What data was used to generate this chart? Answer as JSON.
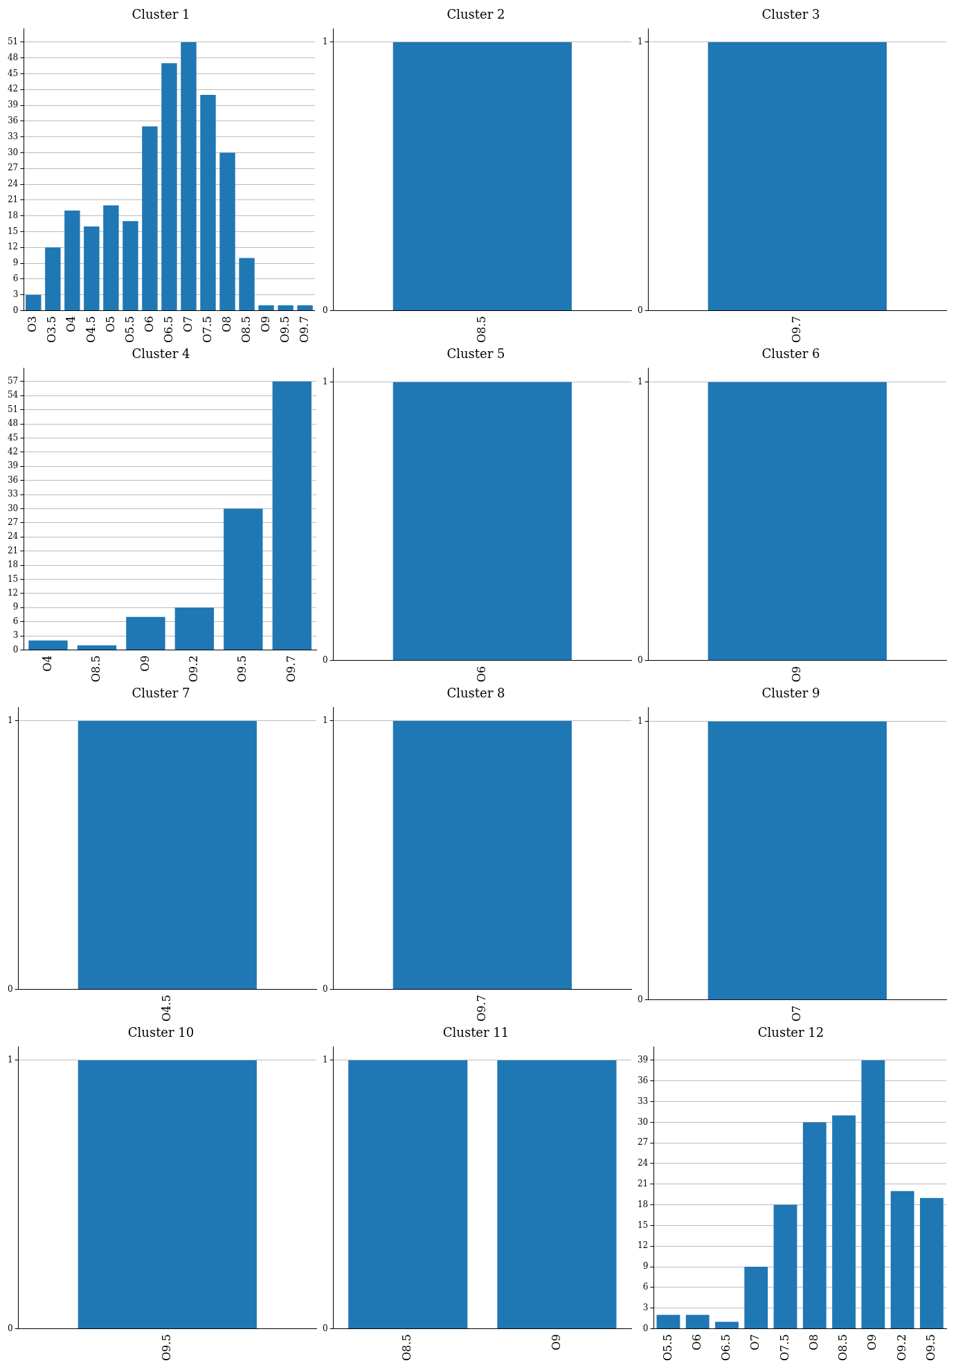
{
  "chart_data": [
    {
      "type": "bar",
      "title": "Cluster 1",
      "categories": [
        "O3",
        "O3.5",
        "O4",
        "O4.5",
        "O5",
        "O5.5",
        "O6",
        "O6.5",
        "O7",
        "O7.5",
        "O8",
        "O8.5",
        "O9",
        "O9.5",
        "O9.7"
      ],
      "values": [
        3,
        12,
        19,
        16,
        20,
        17,
        35,
        47,
        51,
        41,
        30,
        10,
        1,
        1,
        1
      ],
      "color": "#1f77b4",
      "ylim": [
        0,
        53.55
      ],
      "yticks": [
        0,
        3,
        6,
        9,
        12,
        15,
        18,
        21,
        24,
        27,
        30,
        33,
        36,
        39,
        42,
        45,
        48,
        51
      ],
      "grid": "y"
    },
    {
      "type": "bar",
      "title": "Cluster 2",
      "categories": [
        "O8.5"
      ],
      "values": [
        1
      ],
      "color": "#1f77b4",
      "ylim": [
        0,
        1.05
      ],
      "yticks": [
        0,
        1
      ],
      "grid": "y"
    },
    {
      "type": "bar",
      "title": "Cluster 3",
      "categories": [
        "O9.7"
      ],
      "values": [
        1
      ],
      "color": "#1f77b4",
      "ylim": [
        0,
        1.05
      ],
      "yticks": [
        0,
        1
      ],
      "grid": "y"
    },
    {
      "type": "bar",
      "title": "Cluster 4",
      "categories": [
        "O4",
        "O8.5",
        "O9",
        "O9.2",
        "O9.5",
        "O9.7"
      ],
      "values": [
        2,
        1,
        7,
        9,
        30,
        57
      ],
      "color": "#1f77b4",
      "ylim": [
        0,
        59.85
      ],
      "yticks": [
        0,
        3,
        6,
        9,
        12,
        15,
        18,
        21,
        24,
        27,
        30,
        33,
        36,
        39,
        42,
        45,
        48,
        51,
        54,
        57
      ],
      "grid": "y"
    },
    {
      "type": "bar",
      "title": "Cluster 5",
      "categories": [
        "O6"
      ],
      "values": [
        1
      ],
      "color": "#1f77b4",
      "ylim": [
        0,
        1.05
      ],
      "yticks": [
        0,
        1
      ],
      "grid": "y"
    },
    {
      "type": "bar",
      "title": "Cluster 6",
      "categories": [
        "O9"
      ],
      "values": [
        1
      ],
      "color": "#1f77b4",
      "ylim": [
        0,
        1.05
      ],
      "yticks": [
        0,
        1
      ],
      "grid": "y"
    },
    {
      "type": "bar",
      "title": "Cluster 7",
      "categories": [
        "O4.5"
      ],
      "values": [
        1
      ],
      "color": "#1f77b4",
      "ylim": [
        0,
        1.05
      ],
      "yticks": [
        0,
        1
      ],
      "grid": "y"
    },
    {
      "type": "bar",
      "title": "Cluster 8",
      "categories": [
        "O9.7"
      ],
      "values": [
        1
      ],
      "color": "#1f77b4",
      "ylim": [
        0,
        1.05
      ],
      "yticks": [
        0,
        1
      ],
      "grid": "y"
    },
    {
      "type": "bar",
      "title": "Cluster 9",
      "categories": [
        "O7"
      ],
      "values": [
        1
      ],
      "color": "#1f77b4",
      "ylim": [
        0,
        1.05
      ],
      "yticks": [
        0,
        1
      ],
      "grid": "y"
    },
    {
      "type": "bar",
      "title": "Cluster 10",
      "categories": [
        "O9.5"
      ],
      "values": [
        1
      ],
      "color": "#1f77b4",
      "ylim": [
        0,
        1.05
      ],
      "yticks": [
        0,
        1
      ],
      "grid": "y"
    },
    {
      "type": "bar",
      "title": "Cluster 11",
      "categories": [
        "O8.5",
        "O9"
      ],
      "values": [
        1,
        1
      ],
      "color": "#1f77b4",
      "ylim": [
        0,
        1.05
      ],
      "yticks": [
        0,
        1
      ],
      "grid": "y"
    },
    {
      "type": "bar",
      "title": "Cluster 12",
      "categories": [
        "O5.5",
        "O6",
        "O6.5",
        "O7",
        "O7.5",
        "O8",
        "O8.5",
        "O9",
        "O9.2",
        "O9.5"
      ],
      "values": [
        2,
        2,
        1,
        9,
        18,
        30,
        31,
        39,
        20,
        19
      ],
      "color": "#1f77b4",
      "ylim": [
        0,
        40.95
      ],
      "yticks": [
        0,
        3,
        6,
        9,
        12,
        15,
        18,
        21,
        24,
        27,
        30,
        33,
        36,
        39
      ],
      "grid": "y"
    }
  ]
}
